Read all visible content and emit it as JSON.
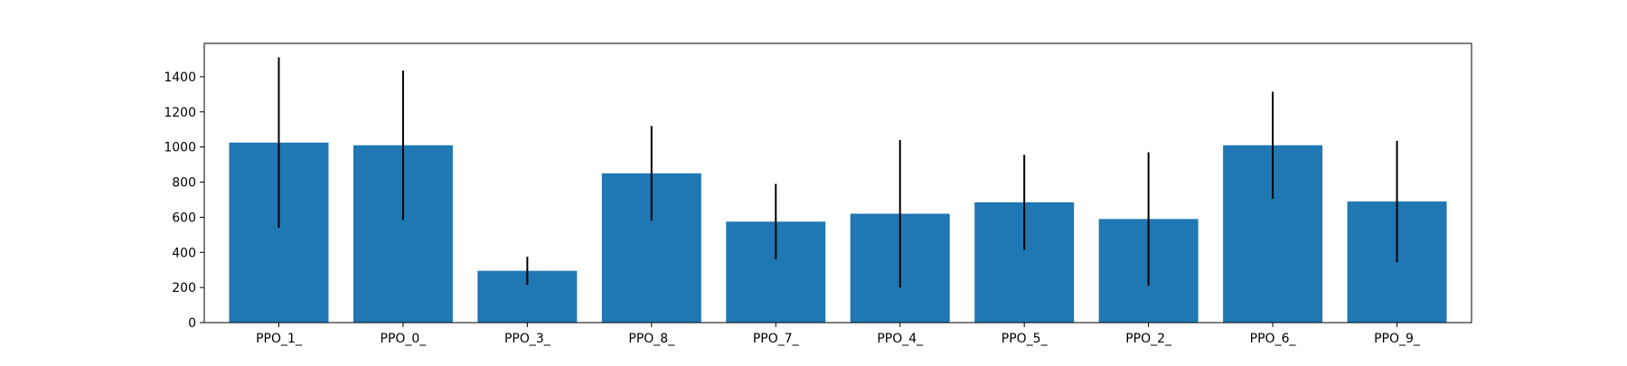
{
  "chart_data": {
    "type": "bar",
    "categories": [
      "PPO_1_",
      "PPO_0_",
      "PPO_3_",
      "PPO_8_",
      "PPO_7_",
      "PPO_4_",
      "PPO_5_",
      "PPO_2_",
      "PPO_6_",
      "PPO_9_"
    ],
    "values": [
      1025,
      1010,
      295,
      850,
      575,
      620,
      685,
      590,
      1010,
      690
    ],
    "errors": [
      485,
      425,
      80,
      270,
      215,
      420,
      270,
      380,
      305,
      345
    ],
    "ylim": [
      0,
      1590
    ],
    "yticks": [
      0,
      200,
      400,
      600,
      800,
      1000,
      1200,
      1400
    ],
    "title": "",
    "xlabel": "",
    "ylabel": "",
    "grid": false,
    "bar_color": "#1f77b4",
    "error_color": "#000000"
  }
}
